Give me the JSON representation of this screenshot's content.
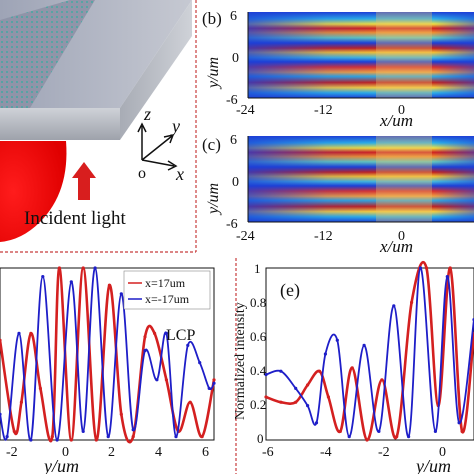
{
  "panel_a": {
    "axis_z": "z",
    "axis_y": "y",
    "axis_x": "x",
    "origin": "o",
    "incident_label": "Incident light"
  },
  "panel_b": {
    "label": "(b)",
    "ylabel": "y/um",
    "xlabel": "x/um",
    "yticks": [
      "6",
      "0",
      "-6"
    ],
    "xticks": [
      "-24",
      "-12",
      "0"
    ]
  },
  "panel_c": {
    "label": "(c)",
    "ylabel": "y/um",
    "xlabel": "x/um",
    "yticks": [
      "6",
      "0",
      "-6"
    ],
    "xticks": [
      "-24",
      "-12",
      "0"
    ]
  },
  "panel_d": {
    "tag": "LCP",
    "xlabel": "y/um",
    "xticks": [
      "-2",
      "0",
      "2",
      "4",
      "6"
    ]
  },
  "panel_e": {
    "label": "(e)",
    "xlabel": "y/um",
    "ylabel": "Normalized intensity",
    "yticks": [
      "1",
      "0.8",
      "0.6",
      "0.4",
      "0.2",
      "0"
    ],
    "xticks": [
      "-6",
      "-4",
      "-2",
      "0"
    ]
  },
  "colors": {
    "series_pos": "#d42020",
    "series_neg": "#1e1ec8",
    "divider": "#c83c3c",
    "arrow": "#d81e1e"
  },
  "chart_data": [
    {
      "type": "line",
      "id": "d",
      "xlabel": "y/um",
      "xlim": [
        -3,
        6
      ],
      "ylim": [
        0,
        1
      ],
      "series": [
        {
          "name": "x=17um",
          "color": "#d42020",
          "x": [
            -3,
            -2.4,
            -2.1,
            -1.7,
            -1.3,
            -0.8,
            -0.5,
            0,
            0.5,
            1.05,
            1.6,
            2.1,
            2.6,
            3.1,
            3.5,
            4.0,
            4.5,
            5.0,
            5.5,
            6.0
          ],
          "y": [
            0.58,
            0.05,
            0.22,
            0.62,
            0.3,
            0.02,
            1.0,
            0.0,
            1.0,
            0.0,
            0.9,
            0.15,
            0.02,
            0.6,
            0.62,
            0.35,
            0.05,
            0.22,
            0.02,
            0.35
          ]
        },
        {
          "name": "x=-17um",
          "color": "#1e1ec8",
          "x": [
            -3,
            -2.7,
            -2.2,
            -1.7,
            -1.2,
            -0.6,
            0,
            0.5,
            1.0,
            1.55,
            2.1,
            2.6,
            3.1,
            3.6,
            4.0,
            4.4,
            4.9,
            5.4,
            5.8,
            6.0
          ],
          "y": [
            0.15,
            0.02,
            0.62,
            0.0,
            0.95,
            0.0,
            0.92,
            0.05,
            1.0,
            0.02,
            0.85,
            0.06,
            0.52,
            0.35,
            0.62,
            0.02,
            0.55,
            0.45,
            0.3,
            0.33
          ]
        }
      ]
    },
    {
      "type": "line",
      "id": "e",
      "xlabel": "y/um",
      "ylabel": "Normalized intensity",
      "xlim": [
        -6,
        1
      ],
      "ylim": [
        0,
        1
      ],
      "series": [
        {
          "color": "#d42020",
          "x": [
            -6,
            -5.5,
            -5.0,
            -4.6,
            -4.2,
            -3.9,
            -3.5,
            -3.1,
            -2.6,
            -2.1,
            -1.6,
            -1.1,
            -0.6,
            -0.2,
            0.2,
            0.6,
            1.0
          ],
          "y": [
            0.25,
            0.22,
            0.22,
            0.32,
            0.4,
            0.25,
            0.05,
            0.42,
            0.0,
            0.35,
            0.02,
            0.8,
            1.0,
            0.2,
            1.0,
            0.05,
            0.62
          ]
        },
        {
          "color": "#1e1ec8",
          "x": [
            -6,
            -5.5,
            -5.0,
            -4.6,
            -4.3,
            -4.0,
            -3.6,
            -3.2,
            -2.7,
            -2.2,
            -1.7,
            -1.2,
            -0.8,
            -0.3,
            0.1,
            0.5,
            1.0
          ],
          "y": [
            0.38,
            0.4,
            0.3,
            0.2,
            0.1,
            0.5,
            0.58,
            0.02,
            0.55,
            0.05,
            0.78,
            0.02,
            1.0,
            0.05,
            0.95,
            0.1,
            0.7
          ]
        }
      ]
    }
  ]
}
